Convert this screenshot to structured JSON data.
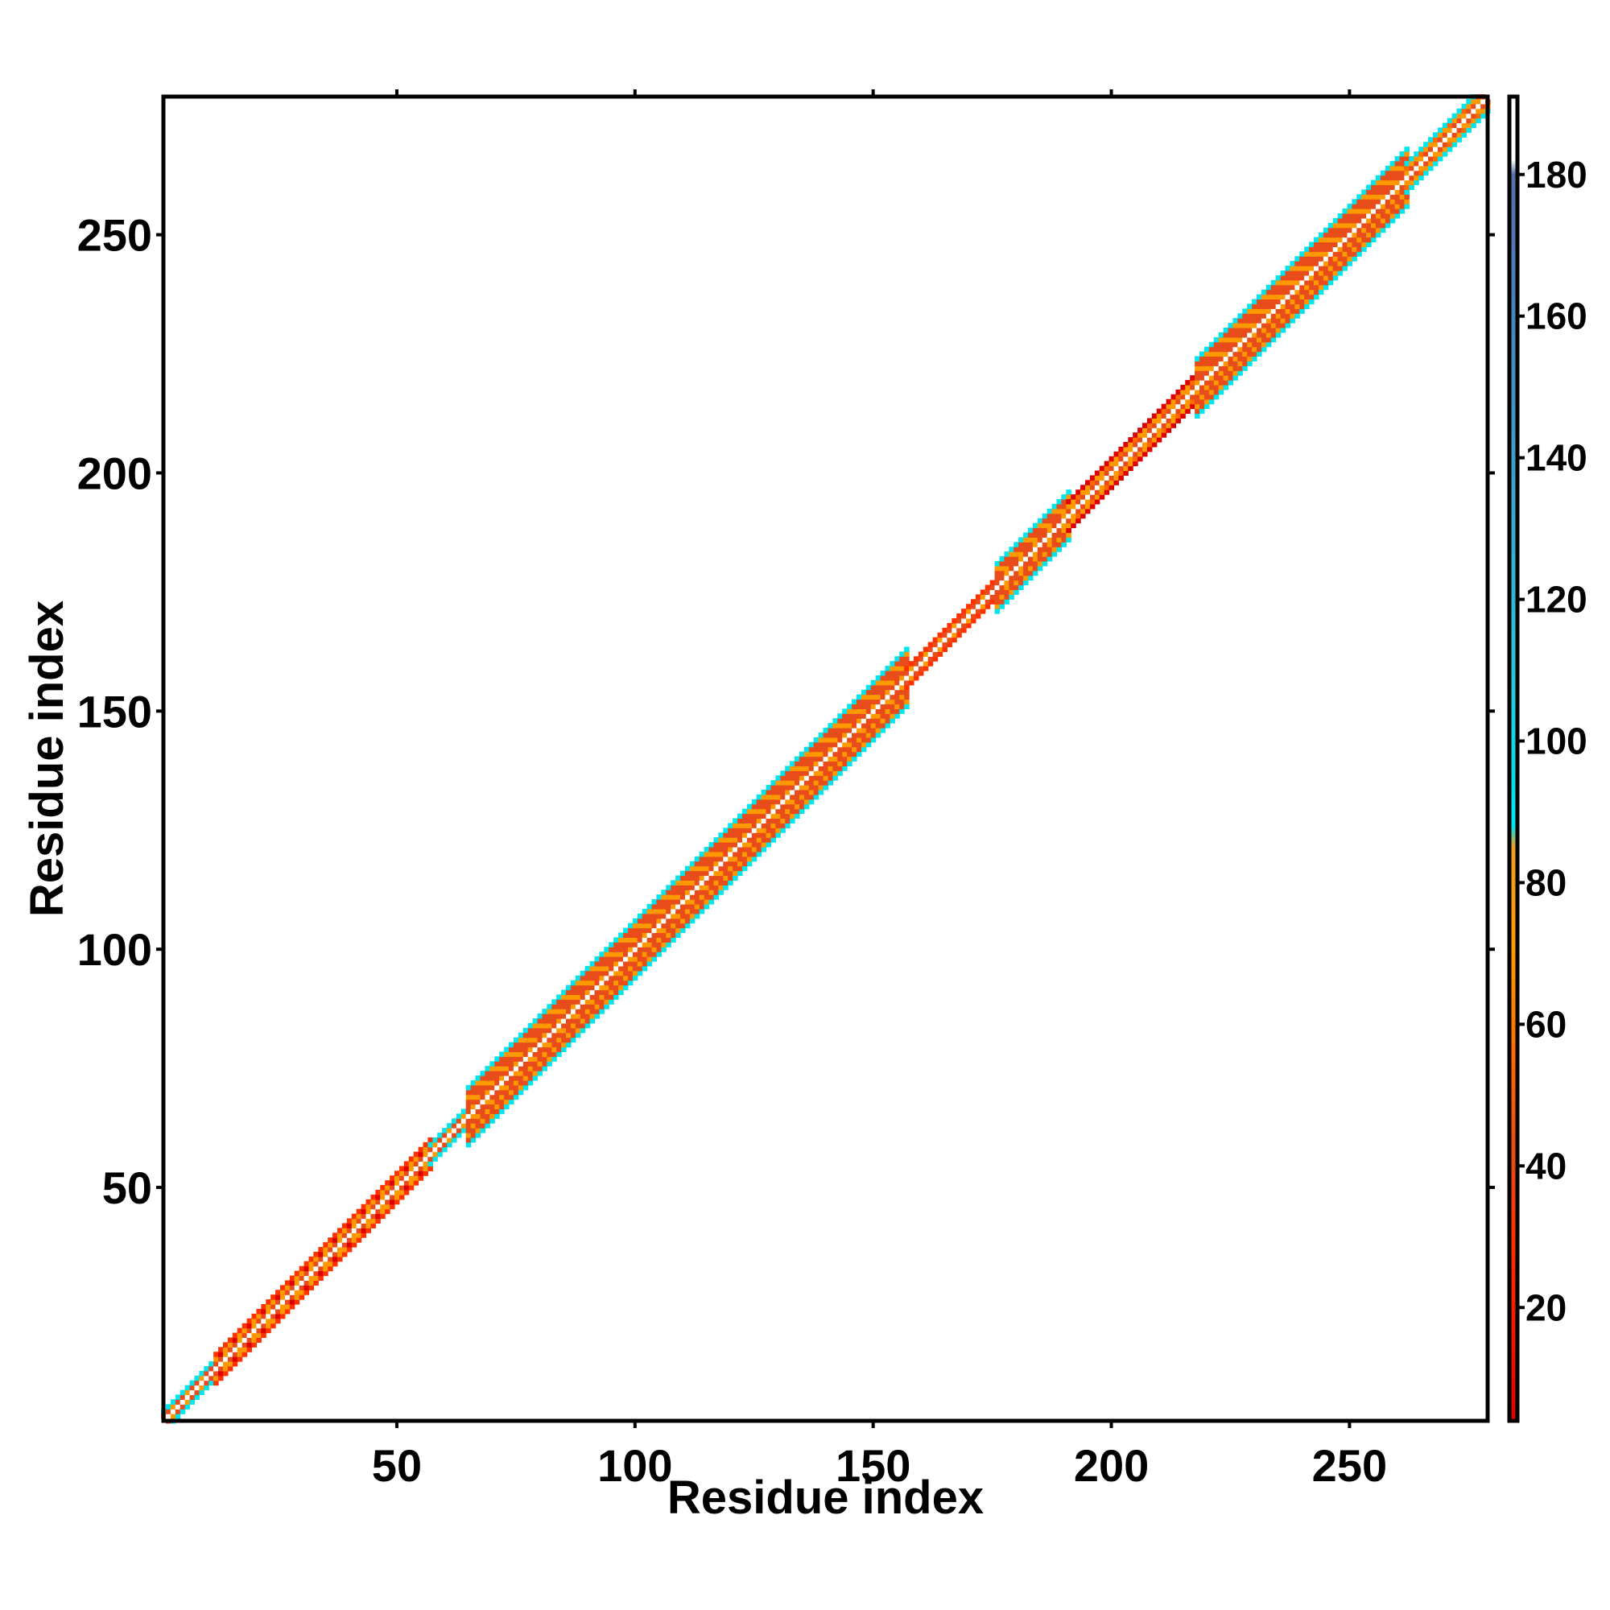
{
  "chart_data": {
    "type": "heatmap",
    "title": "",
    "xlabel": "Residue index",
    "ylabel": "Residue index",
    "xlim": [
      1,
      279
    ],
    "ylim": [
      1,
      279
    ],
    "xticks": [
      50,
      100,
      150,
      200,
      250
    ],
    "yticks": [
      50,
      100,
      150,
      200,
      250
    ],
    "colorbar": {
      "range": [
        4,
        191
      ],
      "ticks": [
        20,
        40,
        60,
        80,
        100,
        120,
        140,
        160,
        180
      ],
      "stops": [
        {
          "value": 4,
          "color": "#dd0000"
        },
        {
          "value": 30,
          "color": "#ff3300"
        },
        {
          "value": 42,
          "color": "#e84c1a"
        },
        {
          "value": 55,
          "color": "#ff6a00"
        },
        {
          "value": 70,
          "color": "#ff9900"
        },
        {
          "value": 85,
          "color": "#f0a020"
        },
        {
          "value": 88,
          "color": "#00e5ee"
        },
        {
          "value": 110,
          "color": "#28c6dc"
        },
        {
          "value": 140,
          "color": "#3f9fc4"
        },
        {
          "value": 165,
          "color": "#4a7fb5"
        },
        {
          "value": 180,
          "color": "#5570a8"
        },
        {
          "value": 182,
          "color": "#ffffff"
        },
        {
          "value": 191,
          "color": "#ffffff"
        }
      ]
    },
    "diagonal_segments": [
      {
        "start": 1,
        "end": 12,
        "halfwidth": 2,
        "band": [
          "#00e5ee",
          "#ff9900",
          "#ff6a00"
        ]
      },
      {
        "start": 12,
        "end": 57,
        "halfwidth": 3,
        "band": [
          "#ff3300",
          "#ff9900",
          "#dd0000"
        ]
      },
      {
        "start": 57,
        "end": 65,
        "halfwidth": 2,
        "band": [
          "#00e5ee",
          "#ff9900",
          "#ff3300"
        ]
      },
      {
        "start": 65,
        "end": 157,
        "halfwidth": 6,
        "band": [
          "#00e5ee",
          "#e84c1a",
          "#ff9900"
        ]
      },
      {
        "start": 157,
        "end": 176,
        "halfwidth": 2,
        "band": [
          "#ff3300",
          "#ff9900",
          "#ff6a00"
        ]
      },
      {
        "start": 176,
        "end": 191,
        "halfwidth": 5,
        "band": [
          "#00e5ee",
          "#e84c1a",
          "#ff9900"
        ]
      },
      {
        "start": 191,
        "end": 218,
        "halfwidth": 3,
        "band": [
          "#dd0000",
          "#ff9900",
          "#ff6a00"
        ]
      },
      {
        "start": 218,
        "end": 262,
        "halfwidth": 6,
        "band": [
          "#00e5ee",
          "#e84c1a",
          "#ff9900"
        ]
      },
      {
        "start": 262,
        "end": 279,
        "halfwidth": 3,
        "band": [
          "#00e5ee",
          "#ff9900",
          "#ff6a00"
        ]
      }
    ]
  }
}
